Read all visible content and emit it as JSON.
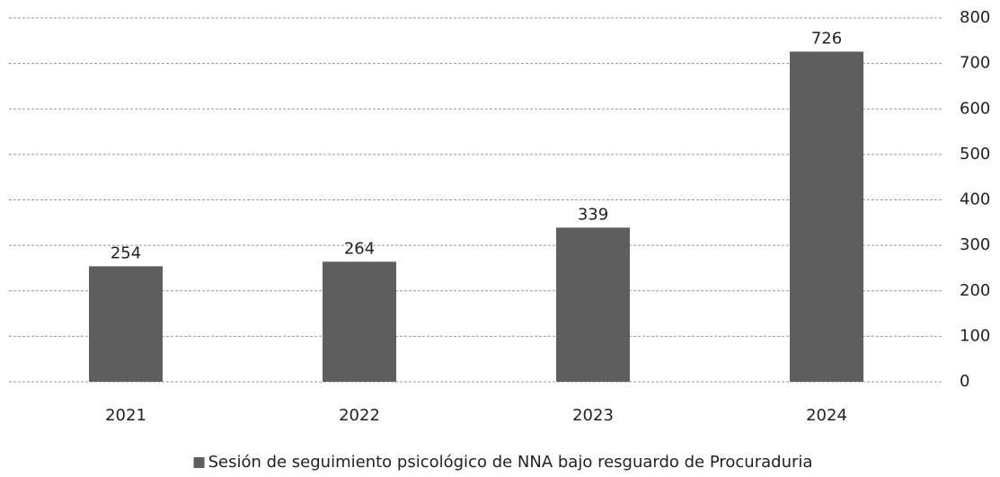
{
  "chart_data": {
    "type": "bar",
    "categories": [
      "2021",
      "2022",
      "2023",
      "2024"
    ],
    "series": [
      {
        "name": "Sesión de seguimiento psicológico de NNA bajo resguardo de Procuraduria",
        "color": "#5e5e5e",
        "values": [
          254,
          264,
          339,
          726
        ]
      }
    ],
    "ylim": [
      0,
      800
    ],
    "yticks": [
      0,
      100,
      200,
      300,
      400,
      500,
      600,
      700,
      800
    ],
    "grid": true,
    "legend": "bottom"
  }
}
